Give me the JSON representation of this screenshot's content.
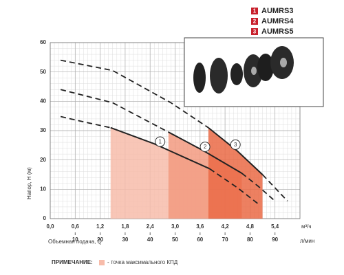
{
  "chart_data": {
    "type": "line",
    "ylabel": "Напор, H (м)",
    "xlabel": "Объемная подача, Q",
    "xunit": "м³/ч",
    "x2unit": "л/мин",
    "xlim": [
      0,
      6
    ],
    "x2lim": [
      0,
      100
    ],
    "ylim": [
      0,
      60
    ],
    "xticks": [
      {
        "value": 0,
        "label": "0,0"
      },
      {
        "value": 0.6,
        "label": "0,6"
      },
      {
        "value": 1.2,
        "label": "1,2"
      },
      {
        "value": 1.8,
        "label": "1,8"
      },
      {
        "value": 2.4,
        "label": "2,4"
      },
      {
        "value": 3.0,
        "label": "3,0"
      },
      {
        "value": 3.6,
        "label": "3,6"
      },
      {
        "value": 4.2,
        "label": "4,2"
      },
      {
        "value": 4.8,
        "label": "4,8"
      },
      {
        "value": 5.4,
        "label": "5,4"
      }
    ],
    "x2ticks": [
      10,
      20,
      30,
      40,
      50,
      60,
      70,
      80,
      90
    ],
    "yticks": [
      0,
      10,
      20,
      30,
      40,
      50,
      60
    ],
    "grid": true,
    "series": [
      {
        "name": "AUMRS3",
        "marker": "1",
        "color": "#f7bcaa",
        "efficiency_range": [
          1.45,
          3.83
        ],
        "x": [
          0.25,
          0.8,
          1.45,
          2.5,
          3.83,
          4.5,
          5.0
        ],
        "values": [
          34.8,
          33,
          31,
          25.5,
          17,
          10.5,
          5
        ]
      },
      {
        "name": "AUMRS4",
        "marker": "2",
        "color": "#f29a80",
        "efficiency_range": [
          2.84,
          4.6
        ],
        "x": [
          0.25,
          1.5,
          2.84,
          3.7,
          4.6,
          5.0,
          5.4
        ],
        "values": [
          44,
          39.5,
          29.5,
          23,
          15.5,
          11,
          6
        ]
      },
      {
        "name": "AUMRS5",
        "marker": "3",
        "color": "#ea6a45",
        "efficiency_range": [
          3.8,
          5.1
        ],
        "x": [
          0.25,
          1.5,
          2.9,
          3.8,
          4.5,
          5.1,
          5.7
        ],
        "values": [
          54,
          50.5,
          39.5,
          31,
          23,
          15,
          6
        ]
      }
    ],
    "note_label": "ПРИМЕЧАНИЕ:",
    "note_text": "- точка максимального КПД"
  }
}
